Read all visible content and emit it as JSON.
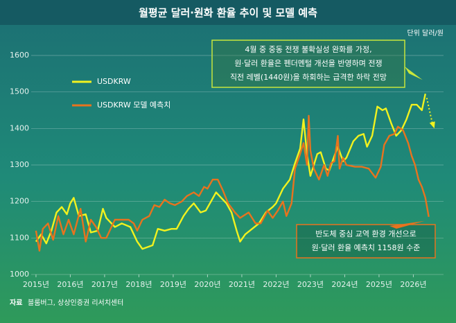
{
  "chart_data": {
    "type": "line",
    "title": "월평균 달러·원화 환율 추이 및 모델 예측",
    "unit": "단위 달러/원",
    "source_label": "자료",
    "source": "블룸버그, 상상인증권 리서치센터",
    "annotations": [
      {
        "lines": [
          "4월 중 중동 전쟁 불확실성 완화를 가정,",
          "원·달러 환율은 펜더멘털 개선을 반영하며 전쟁",
          "직전 레벨(1440원)을 하회하는 급격한 하락 전망"
        ],
        "color": "#c8e63c"
      },
      {
        "lines": [
          "반도체 중심 교역 환경 개선으로",
          "원·달러 환율 예측치 1158원 수준"
        ],
        "color": "#e8731e"
      }
    ],
    "xlim": [
      2014.86,
      2026.88
    ],
    "ylim": [
      1000,
      1600
    ],
    "yticks": [
      1000,
      1100,
      1200,
      1300,
      1400,
      1500,
      1600
    ],
    "xticks": [
      {
        "value": 2015,
        "label": "2015년"
      },
      {
        "value": 2016,
        "label": "2016년"
      },
      {
        "value": 2017,
        "label": "2017년"
      },
      {
        "value": 2018,
        "label": "2018년"
      },
      {
        "value": 2019,
        "label": "2019년"
      },
      {
        "value": 2020,
        "label": "2020년"
      },
      {
        "value": 2021,
        "label": "2021년"
      },
      {
        "value": 2022,
        "label": "2022년"
      },
      {
        "value": 2023,
        "label": "2023년"
      },
      {
        "value": 2024,
        "label": "2024년"
      },
      {
        "value": 2025,
        "label": "2025년"
      },
      {
        "value": 2026,
        "label": "2026년"
      }
    ],
    "grid": true,
    "legend": "upper left",
    "series": [
      {
        "name": "USDKRW",
        "color": "#f2f21e",
        "x": [
          2015.0,
          2015.15,
          2015.3,
          2015.45,
          2015.6,
          2015.75,
          2015.9,
          2016.0,
          2016.1,
          2016.25,
          2016.45,
          2016.6,
          2016.8,
          2016.95,
          2017.05,
          2017.3,
          2017.5,
          2017.75,
          2017.95,
          2018.1,
          2018.25,
          2018.4,
          2018.55,
          2018.75,
          2018.95,
          2019.1,
          2019.3,
          2019.45,
          2019.6,
          2019.8,
          2019.95,
          2020.1,
          2020.25,
          2020.4,
          2020.55,
          2020.7,
          2020.85,
          2020.95,
          2021.1,
          2021.3,
          2021.5,
          2021.7,
          2021.9,
          2022.0,
          2022.2,
          2022.4,
          2022.55,
          2022.7,
          2022.8,
          2022.9,
          2023.0,
          2023.1,
          2023.2,
          2023.3,
          2023.45,
          2023.55,
          2023.7,
          2023.8,
          2023.95,
          2024.05,
          2024.25,
          2024.4,
          2024.55,
          2024.65,
          2024.8,
          2024.95,
          2025.1,
          2025.2,
          2025.35,
          2025.5,
          2025.65,
          2025.8,
          2025.95,
          2026.1,
          2026.25,
          2026.35
        ],
        "values": [
          1090,
          1110,
          1085,
          1120,
          1170,
          1185,
          1165,
          1195,
          1210,
          1160,
          1165,
          1115,
          1120,
          1180,
          1155,
          1130,
          1140,
          1130,
          1090,
          1070,
          1075,
          1080,
          1125,
          1120,
          1125,
          1125,
          1160,
          1180,
          1195,
          1170,
          1175,
          1200,
          1225,
          1210,
          1195,
          1170,
          1120,
          1090,
          1110,
          1125,
          1140,
          1170,
          1185,
          1195,
          1235,
          1260,
          1305,
          1345,
          1425,
          1330,
          1270,
          1300,
          1330,
          1335,
          1290,
          1285,
          1325,
          1350,
          1310,
          1320,
          1365,
          1380,
          1385,
          1350,
          1380,
          1460,
          1450,
          1455,
          1415,
          1380,
          1395,
          1425,
          1465,
          1465,
          1450,
          1495
        ]
      },
      {
        "name": "USDKRW 모델 예측치",
        "color": "#e8731e",
        "x": [
          2015.0,
          2015.1,
          2015.2,
          2015.35,
          2015.5,
          2015.65,
          2015.8,
          2015.95,
          2016.1,
          2016.3,
          2016.45,
          2016.6,
          2016.75,
          2016.9,
          2017.05,
          2017.3,
          2017.5,
          2017.7,
          2017.85,
          2017.95,
          2018.1,
          2018.3,
          2018.45,
          2018.6,
          2018.75,
          2018.9,
          2019.05,
          2019.25,
          2019.4,
          2019.6,
          2019.75,
          2019.9,
          2020.0,
          2020.15,
          2020.3,
          2020.45,
          2020.6,
          2020.8,
          2020.95,
          2021.2,
          2021.4,
          2021.55,
          2021.75,
          2021.9,
          2022.05,
          2022.2,
          2022.3,
          2022.45,
          2022.55,
          2022.7,
          2022.8,
          2022.9,
          2022.95,
          2023.0,
          2023.1,
          2023.25,
          2023.4,
          2023.5,
          2023.6,
          2023.7,
          2023.8,
          2023.85,
          2023.95,
          2024.05,
          2024.3,
          2024.5,
          2024.7,
          2024.9,
          2025.05,
          2025.15,
          2025.3,
          2025.45,
          2025.55,
          2025.7,
          2025.85,
          2025.95,
          2026.05,
          2026.15,
          2026.25,
          2026.35,
          2026.45
        ],
        "values": [
          1120,
          1065,
          1125,
          1140,
          1095,
          1160,
          1110,
          1150,
          1110,
          1180,
          1090,
          1150,
          1130,
          1100,
          1100,
          1150,
          1150,
          1150,
          1140,
          1120,
          1150,
          1160,
          1190,
          1185,
          1205,
          1195,
          1190,
          1200,
          1215,
          1225,
          1215,
          1240,
          1235,
          1260,
          1260,
          1230,
          1195,
          1170,
          1155,
          1170,
          1140,
          1140,
          1175,
          1155,
          1175,
          1200,
          1160,
          1195,
          1290,
          1330,
          1360,
          1300,
          1435,
          1340,
          1290,
          1260,
          1300,
          1270,
          1305,
          1310,
          1380,
          1290,
          1320,
          1300,
          1295,
          1295,
          1290,
          1265,
          1295,
          1355,
          1380,
          1385,
          1405,
          1395,
          1360,
          1325,
          1300,
          1260,
          1240,
          1210,
          1158
        ]
      }
    ]
  }
}
